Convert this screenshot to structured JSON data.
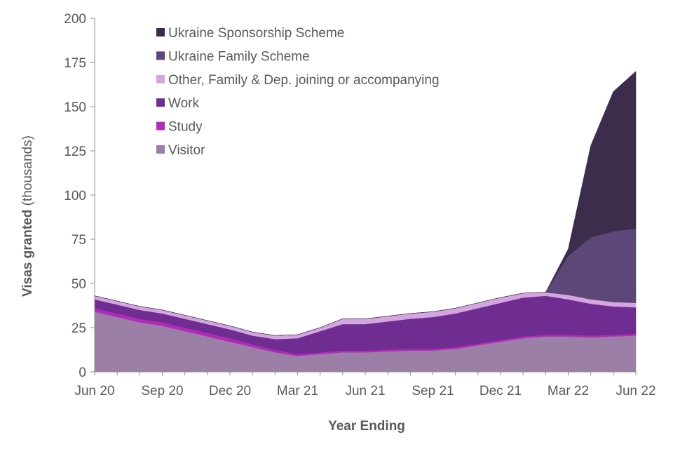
{
  "chart_data": {
    "type": "area",
    "stacked": true,
    "xlabel": "Year Ending",
    "ylabel_bold": "Visas granted",
    "ylabel_rest": " (thousands)",
    "ylim": [
      0,
      200
    ],
    "yticks": [
      0,
      25,
      50,
      75,
      100,
      125,
      150,
      175,
      200
    ],
    "x_tick_labels": [
      "Jun 20",
      "Sep 20",
      "Dec 20",
      "Mar 21",
      "Jun 21",
      "Sep 21",
      "Dec 21",
      "Mar 22",
      "Jun 22"
    ],
    "x": [
      "Jun 20",
      "Jul 20",
      "Aug 20",
      "Sep 20",
      "Oct 20",
      "Nov 20",
      "Dec 20",
      "Jan 21",
      "Feb 21",
      "Mar 21",
      "Apr 21",
      "May 21",
      "Jun 21",
      "Jul 21",
      "Aug 21",
      "Sep 21",
      "Oct 21",
      "Nov 21",
      "Dec 21",
      "Jan 22",
      "Feb 22",
      "Mar 22",
      "Apr 22",
      "May 22",
      "Jun 22"
    ],
    "grid": false,
    "legend_position": "top-left",
    "series": [
      {
        "name": "Visitor",
        "color": "#9b7fa6",
        "values": [
          34,
          31,
          28,
          26,
          23,
          20,
          17,
          14,
          11,
          9,
          10,
          11,
          11,
          11.5,
          12,
          12,
          13,
          15,
          17,
          19,
          20,
          20,
          19.5,
          20,
          20.5
        ]
      },
      {
        "name": "Study",
        "color": "#b22bb8",
        "values": [
          2,
          2,
          2,
          2,
          2,
          2,
          2,
          1.5,
          1.5,
          1,
          1,
          1,
          1,
          1,
          1,
          1,
          1,
          1,
          1,
          1,
          1,
          1,
          1,
          1,
          1
        ]
      },
      {
        "name": "Work",
        "color": "#6f2c91",
        "values": [
          5,
          5,
          5,
          5,
          5,
          5,
          5,
          5,
          6,
          9,
          12,
          15,
          15,
          16,
          17,
          18,
          19,
          20,
          21,
          22,
          22,
          20,
          18,
          16,
          15
        ]
      },
      {
        "name": "Other, Family & Dep. joining or accompanying",
        "color": "#d4a6df",
        "values": [
          2,
          2,
          2,
          2,
          2,
          2,
          2,
          2,
          2,
          2,
          2,
          3,
          3,
          3,
          3,
          3,
          3,
          3,
          3,
          2.5,
          2,
          2.5,
          2.5,
          2.5,
          2.5
        ]
      },
      {
        "name": "Ukraine Family Scheme",
        "color": "#5c4778",
        "values": [
          0,
          0,
          0,
          0,
          0,
          0,
          0,
          0,
          0,
          0,
          0,
          0,
          0,
          0,
          0,
          0,
          0,
          0,
          0,
          0,
          0,
          22,
          35,
          40,
          42
        ]
      },
      {
        "name": "Ukraine Sponsorship Scheme",
        "color": "#3d2d4d",
        "values": [
          0,
          0,
          0,
          0,
          0,
          0,
          0,
          0,
          0,
          0,
          0,
          0,
          0,
          0,
          0,
          0,
          0,
          0,
          0,
          0,
          0,
          4,
          52,
          79,
          89
        ]
      }
    ]
  }
}
